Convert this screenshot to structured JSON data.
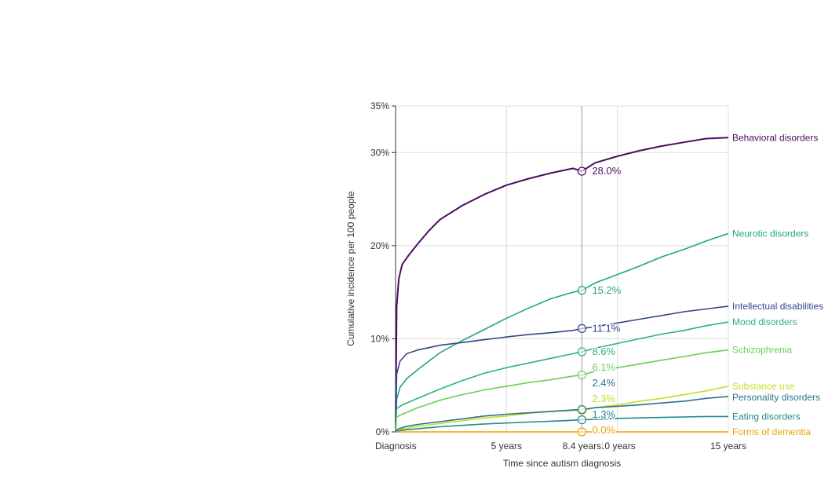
{
  "chart_data": {
    "type": "line",
    "title": "",
    "xlabel": "Time since autism diagnosis",
    "ylabel": "Cumulative incidence per 100 people",
    "xlim": [
      0,
      15
    ],
    "ylim": [
      0,
      35
    ],
    "x_ticks": [
      {
        "value": 0,
        "label": "Diagnosis"
      },
      {
        "value": 5,
        "label": "5 years"
      },
      {
        "value": 10,
        "label": "10 years"
      },
      {
        "value": 15,
        "label": "15 years"
      }
    ],
    "y_ticks": [
      {
        "value": 0,
        "label": "0%"
      },
      {
        "value": 10,
        "label": "10%"
      },
      {
        "value": 20,
        "label": "20%"
      },
      {
        "value": 30,
        "label": "30%"
      },
      {
        "value": 35,
        "label": "35%"
      }
    ],
    "hover": {
      "x": 8.4,
      "label": "8.4 years"
    },
    "series": [
      {
        "name": "Behavioral disorders",
        "color": "#4b0c5f",
        "hover_value": 28.0,
        "hover_label": "28.0%",
        "points": [
          [
            0,
            0
          ],
          [
            0.05,
            13.5
          ],
          [
            0.15,
            16.5
          ],
          [
            0.3,
            18
          ],
          [
            0.6,
            19
          ],
          [
            1,
            20.2
          ],
          [
            1.5,
            21.6
          ],
          [
            2,
            22.8
          ],
          [
            3,
            24.3
          ],
          [
            4,
            25.5
          ],
          [
            5,
            26.5
          ],
          [
            6,
            27.2
          ],
          [
            7,
            27.8
          ],
          [
            8,
            28.3
          ],
          [
            8.4,
            28.0
          ],
          [
            9,
            28.9
          ],
          [
            10,
            29.6
          ],
          [
            11,
            30.2
          ],
          [
            12,
            30.7
          ],
          [
            13,
            31.1
          ],
          [
            14,
            31.5
          ],
          [
            15,
            31.6
          ]
        ]
      },
      {
        "name": "Neurotic disorders",
        "color": "#20a386",
        "hover_value": 15.2,
        "hover_label": "15.2%",
        "points": [
          [
            0,
            0
          ],
          [
            0.05,
            3.5
          ],
          [
            0.2,
            4.8
          ],
          [
            0.5,
            5.7
          ],
          [
            1,
            6.7
          ],
          [
            2,
            8.5
          ],
          [
            3,
            9.8
          ],
          [
            4,
            11.0
          ],
          [
            5,
            12.2
          ],
          [
            6,
            13.3
          ],
          [
            7,
            14.3
          ],
          [
            8,
            15.0
          ],
          [
            8.4,
            15.2
          ],
          [
            9,
            16.0
          ],
          [
            10,
            16.9
          ],
          [
            11,
            17.8
          ],
          [
            12,
            18.8
          ],
          [
            13,
            19.6
          ],
          [
            14,
            20.5
          ],
          [
            15,
            21.3
          ]
        ]
      },
      {
        "name": "Intellectual disabilities",
        "color": "#33468a",
        "hover_value": 11.1,
        "hover_label": "11.1%",
        "points": [
          [
            0,
            0
          ],
          [
            0.05,
            6.2
          ],
          [
            0.2,
            7.6
          ],
          [
            0.5,
            8.4
          ],
          [
            1,
            8.8
          ],
          [
            2,
            9.3
          ],
          [
            3,
            9.6
          ],
          [
            4,
            9.9
          ],
          [
            5,
            10.2
          ],
          [
            6,
            10.45
          ],
          [
            7,
            10.65
          ],
          [
            8,
            10.9
          ],
          [
            8.4,
            11.1
          ],
          [
            9,
            11.3
          ],
          [
            10,
            11.7
          ],
          [
            11,
            12.1
          ],
          [
            12,
            12.5
          ],
          [
            13,
            12.9
          ],
          [
            14,
            13.2
          ],
          [
            15,
            13.5
          ]
        ]
      },
      {
        "name": "Mood disorders",
        "color": "#2db27d",
        "hover_value": 8.6,
        "hover_label": "8.6%",
        "points": [
          [
            0,
            0
          ],
          [
            0.05,
            2.5
          ],
          [
            0.3,
            2.9
          ],
          [
            1,
            3.6
          ],
          [
            2,
            4.6
          ],
          [
            3,
            5.5
          ],
          [
            4,
            6.3
          ],
          [
            5,
            6.9
          ],
          [
            6,
            7.4
          ],
          [
            7,
            7.9
          ],
          [
            8,
            8.4
          ],
          [
            8.4,
            8.6
          ],
          [
            9,
            9.0
          ],
          [
            10,
            9.5
          ],
          [
            11,
            10.0
          ],
          [
            12,
            10.5
          ],
          [
            13,
            10.9
          ],
          [
            14,
            11.4
          ],
          [
            15,
            11.8
          ]
        ]
      },
      {
        "name": "Schizophrenia",
        "color": "#6ccd5a",
        "hover_value": 6.1,
        "hover_label": "6.1%",
        "points": [
          [
            0,
            0
          ],
          [
            0.05,
            1.6
          ],
          [
            0.3,
            1.9
          ],
          [
            1,
            2.6
          ],
          [
            2,
            3.4
          ],
          [
            3,
            4.0
          ],
          [
            4,
            4.5
          ],
          [
            5,
            4.9
          ],
          [
            6,
            5.3
          ],
          [
            7,
            5.6
          ],
          [
            8,
            6.0
          ],
          [
            8.4,
            6.1
          ],
          [
            9,
            6.5
          ],
          [
            10,
            6.9
          ],
          [
            11,
            7.3
          ],
          [
            12,
            7.7
          ],
          [
            13,
            8.1
          ],
          [
            14,
            8.5
          ],
          [
            15,
            8.8
          ]
        ]
      },
      {
        "name": "Substance use",
        "color": "#c2df23",
        "hover_value": 2.3,
        "hover_label": "2.3%",
        "points": [
          [
            0,
            0
          ],
          [
            0.3,
            0.3
          ],
          [
            1,
            0.6
          ],
          [
            2,
            0.9
          ],
          [
            3,
            1.2
          ],
          [
            4,
            1.5
          ],
          [
            5,
            1.7
          ],
          [
            6,
            2.0
          ],
          [
            7,
            2.2
          ],
          [
            8,
            2.3
          ],
          [
            8.4,
            2.3
          ],
          [
            9,
            2.6
          ],
          [
            10,
            2.9
          ],
          [
            11,
            3.3
          ],
          [
            12,
            3.6
          ],
          [
            13,
            4.0
          ],
          [
            14,
            4.4
          ],
          [
            15,
            4.9
          ]
        ]
      },
      {
        "name": "Personality disorders",
        "color": "#2c728e",
        "hover_value": 2.4,
        "hover_label": "2.4%",
        "points": [
          [
            0,
            0
          ],
          [
            0.1,
            0.3
          ],
          [
            0.5,
            0.6
          ],
          [
            1,
            0.8
          ],
          [
            2,
            1.1
          ],
          [
            3,
            1.4
          ],
          [
            4,
            1.7
          ],
          [
            5,
            1.9
          ],
          [
            6,
            2.05
          ],
          [
            7,
            2.2
          ],
          [
            8,
            2.35
          ],
          [
            8.4,
            2.4
          ],
          [
            9,
            2.6
          ],
          [
            10,
            2.75
          ],
          [
            11,
            2.9
          ],
          [
            12,
            3.1
          ],
          [
            13,
            3.3
          ],
          [
            14,
            3.6
          ],
          [
            15,
            3.8
          ]
        ]
      },
      {
        "name": "Eating disorders",
        "color": "#1f8c8c",
        "hover_value": 1.3,
        "hover_label": "1.3%",
        "points": [
          [
            0,
            0
          ],
          [
            0.2,
            0.15
          ],
          [
            1,
            0.35
          ],
          [
            2,
            0.55
          ],
          [
            3,
            0.7
          ],
          [
            4,
            0.85
          ],
          [
            5,
            0.95
          ],
          [
            6,
            1.05
          ],
          [
            7,
            1.15
          ],
          [
            8,
            1.25
          ],
          [
            8.4,
            1.3
          ],
          [
            9,
            1.35
          ],
          [
            10,
            1.45
          ],
          [
            11,
            1.5
          ],
          [
            12,
            1.55
          ],
          [
            13,
            1.6
          ],
          [
            14,
            1.65
          ],
          [
            15,
            1.65
          ]
        ]
      },
      {
        "name": "Forms of dementia",
        "color": "#e7a500",
        "hover_value": 0.0,
        "hover_label": "0.0%",
        "points": [
          [
            0,
            0
          ],
          [
            15,
            0.0
          ]
        ]
      }
    ],
    "end_labels": [
      {
        "name": "Behavioral disorders",
        "value": 31.6
      },
      {
        "name": "Neurotic disorders",
        "value": 21.3
      },
      {
        "name": "Intellectual disabilities",
        "value": 13.5
      },
      {
        "name": "Mood disorders",
        "value": 11.8
      },
      {
        "name": "Schizophrenia",
        "value": 8.8
      },
      {
        "name": "Substance use",
        "value": 4.9
      },
      {
        "name": "Personality disorders",
        "value": 3.8
      },
      {
        "name": "Eating disorders",
        "value": 1.65
      },
      {
        "name": "Forms of dementia",
        "value": 0.0
      }
    ]
  }
}
